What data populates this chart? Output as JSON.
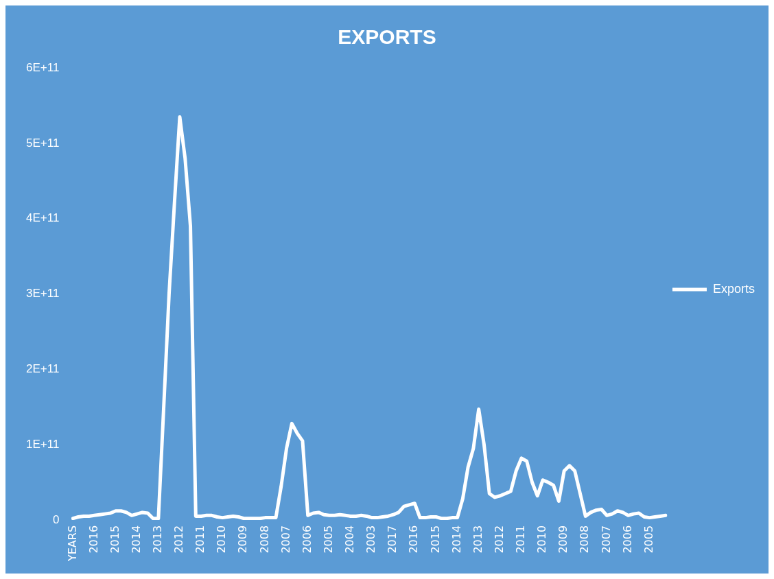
{
  "chart_data": {
    "type": "line",
    "title": "EXPORTS",
    "categories": [
      "YEARS",
      null,
      null,
      null,
      "2016",
      null,
      null,
      null,
      "2015",
      null,
      null,
      null,
      "2014",
      null,
      null,
      null,
      "2013",
      null,
      null,
      null,
      "2012",
      null,
      null,
      null,
      "2011",
      null,
      null,
      null,
      "2010",
      null,
      null,
      null,
      "2009",
      null,
      null,
      null,
      "2008",
      null,
      null,
      null,
      "2007",
      null,
      null,
      null,
      "2006",
      null,
      null,
      null,
      "2005",
      null,
      null,
      null,
      "2004",
      null,
      null,
      null,
      "2003",
      null,
      null,
      null,
      "2017",
      null,
      null,
      null,
      "2016",
      null,
      null,
      null,
      "2015",
      null,
      null,
      null,
      "2014",
      null,
      null,
      null,
      "2013",
      null,
      null,
      null,
      "2012",
      null,
      null,
      null,
      "2011",
      null,
      null,
      null,
      "2010",
      null,
      null,
      null,
      "2009",
      null,
      null,
      null,
      "2008",
      null,
      null,
      null,
      "2007",
      null,
      null,
      null,
      "2006",
      null,
      null,
      null,
      "2005",
      null,
      null,
      null
    ],
    "series": [
      {
        "name": "Exports",
        "color": "#ffffff",
        "values": [
          2000000000.0,
          4000000000.0,
          5000000000.0,
          5000000000.0,
          6000000000.0,
          7000000000.0,
          8000000000.0,
          9000000000.0,
          12000000000.0,
          12000000000.0,
          10000000000.0,
          6000000000.0,
          8000000000.0,
          10000000000.0,
          9000000000.0,
          2000000000.0,
          2000000000.0,
          150000000000.0,
          300000000000.0,
          420000000000.0,
          535000000000.0,
          480000000000.0,
          390000000000.0,
          5000000000.0,
          5000000000.0,
          6000000000.0,
          6000000000.0,
          4000000000.0,
          3000000000.0,
          4000000000.0,
          5000000000.0,
          4000000000.0,
          2000000000.0,
          2000000000.0,
          2000000000.0,
          2000000000.0,
          3000000000.0,
          3000000000.0,
          3000000000.0,
          45000000000.0,
          95000000000.0,
          128000000000.0,
          115000000000.0,
          105000000000.0,
          6000000000.0,
          9000000000.0,
          10000000000.0,
          7000000000.0,
          6000000000.0,
          6000000000.0,
          7000000000.0,
          6000000000.0,
          5000000000.0,
          5000000000.0,
          6000000000.0,
          5000000000.0,
          3000000000.0,
          3000000000.0,
          4000000000.0,
          5000000000.0,
          7000000000.0,
          10000000000.0,
          18000000000.0,
          20000000000.0,
          22000000000.0,
          3000000000.0,
          3000000000.0,
          4000000000.0,
          4000000000.0,
          2000000000.0,
          2000000000.0,
          3000000000.0,
          3000000000.0,
          28000000000.0,
          70000000000.0,
          95000000000.0,
          147000000000.0,
          100000000000.0,
          35000000000.0,
          30000000000.0,
          32000000000.0,
          35000000000.0,
          38000000000.0,
          65000000000.0,
          82000000000.0,
          78000000000.0,
          50000000000.0,
          32000000000.0,
          53000000000.0,
          50000000000.0,
          46000000000.0,
          25000000000.0,
          65000000000.0,
          72000000000.0,
          65000000000.0,
          35000000000.0,
          5000000000.0,
          10000000000.0,
          13000000000.0,
          14000000000.0,
          6000000000.0,
          8000000000.0,
          12000000000.0,
          10000000000.0,
          6000000000.0,
          8000000000.0,
          9000000000.0,
          4000000000.0,
          3000000000.0,
          4000000000.0,
          5000000000.0,
          6000000000.0
        ]
      }
    ],
    "ylim": [
      0,
      600000000000.0
    ],
    "yticks": [
      0,
      {
        "value": 100000000000.0,
        "label": "1E+11"
      },
      {
        "value": 200000000000.0,
        "label": "2E+11"
      },
      {
        "value": 300000000000.0,
        "label": "3E+11"
      },
      {
        "value": 400000000000.0,
        "label": "4E+11"
      },
      {
        "value": 500000000000.0,
        "label": "5E+11"
      },
      {
        "value": 600000000000.0,
        "label": "6E+11"
      }
    ],
    "grid": false,
    "legend": "right",
    "marker": "none",
    "line_style": "solid"
  }
}
